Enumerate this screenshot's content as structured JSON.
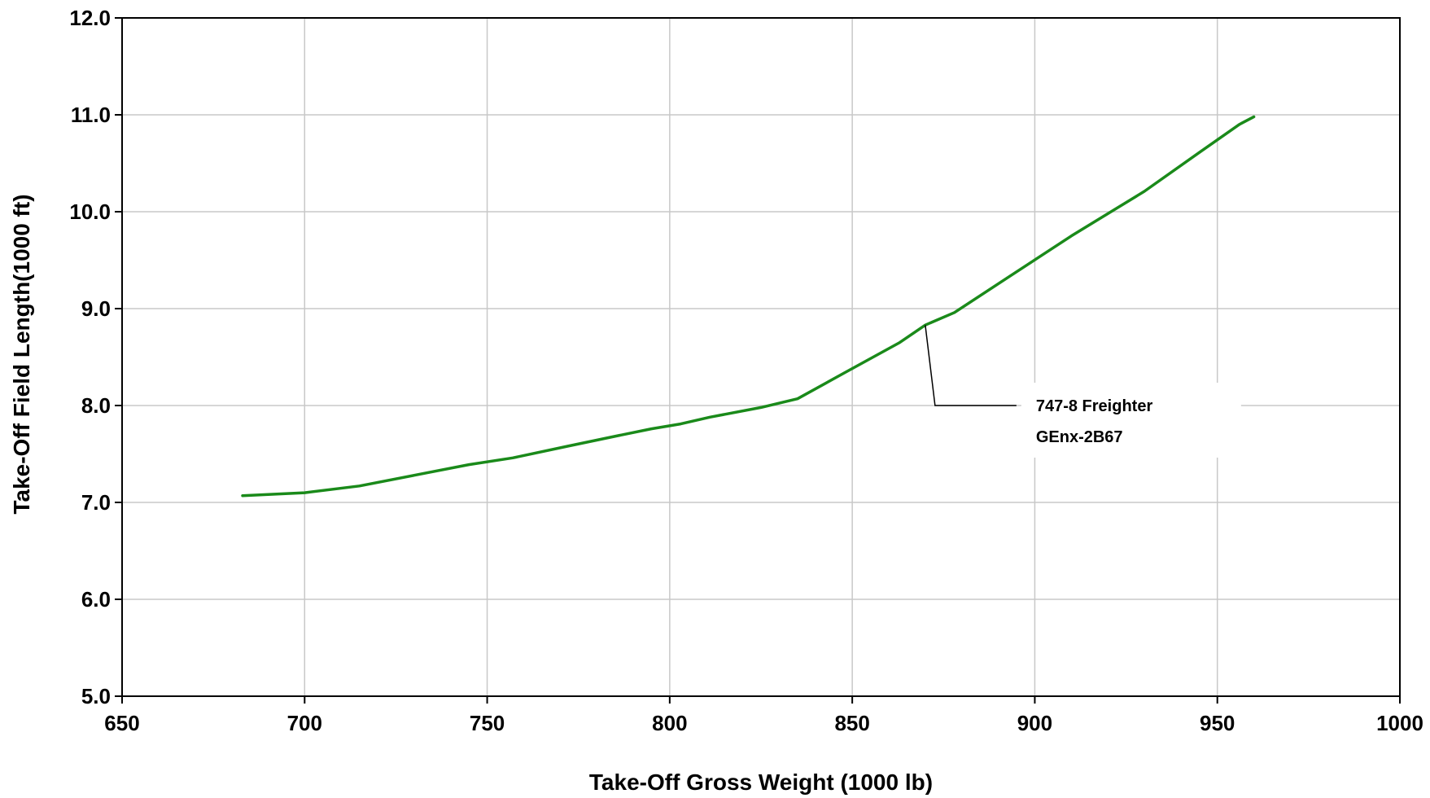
{
  "chart_data": {
    "type": "line",
    "title": "",
    "xlabel": "Take-Off Gross Weight (1000 lb)",
    "ylabel": "Take-Off Field Length(1000 ft)",
    "xlim": [
      650,
      1000
    ],
    "ylim": [
      5.0,
      12.0
    ],
    "x_ticks": [
      650,
      700,
      750,
      800,
      850,
      900,
      950,
      1000
    ],
    "x_tick_labels": [
      "650",
      "700",
      "750",
      "800",
      "850",
      "900",
      "950",
      "1000"
    ],
    "y_ticks": [
      5.0,
      6.0,
      7.0,
      8.0,
      9.0,
      10.0,
      11.0,
      12.0
    ],
    "y_tick_labels": [
      "5.0",
      "6.0",
      "7.0",
      "8.0",
      "9.0",
      "10.0",
      "11.0",
      "12.0"
    ],
    "grid": true,
    "legend": "none",
    "series": [
      {
        "color": "#1a8a1a",
        "x": [
          683,
          700,
          715,
          730,
          745,
          757,
          772,
          786,
          795,
          803,
          811,
          825,
          835,
          848,
          863,
          870,
          878,
          893,
          910,
          930,
          945,
          956,
          960
        ],
        "y": [
          7.07,
          7.1,
          7.17,
          7.28,
          7.39,
          7.46,
          7.58,
          7.69,
          7.76,
          7.81,
          7.88,
          7.98,
          8.07,
          8.34,
          8.65,
          8.83,
          8.96,
          9.33,
          9.75,
          10.21,
          10.61,
          10.9,
          10.98
        ]
      }
    ],
    "annotations": [
      {
        "lines": [
          "747-8 Freighter",
          "GEnx-2B67"
        ],
        "points_to": [
          870,
          8.83
        ]
      }
    ]
  }
}
